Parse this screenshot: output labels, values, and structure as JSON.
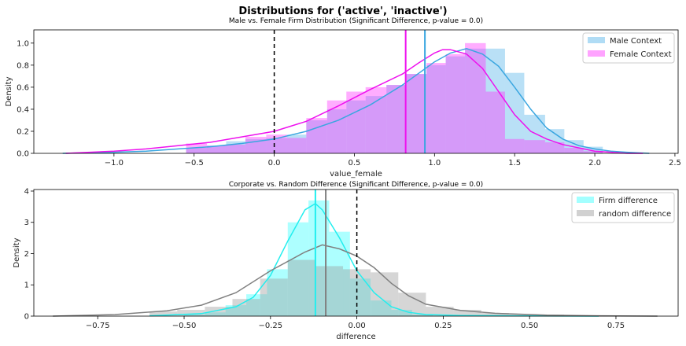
{
  "suptitle": "Distributions for ('active', 'inactive')",
  "chart_data": [
    {
      "type": "histogram+kde",
      "title": "Male vs. Female Firm Distribution (Significant Difference, p-value = 0.0)",
      "xlabel": "value_female",
      "ylabel": "Density",
      "xlim": [
        -1.5,
        2.52
      ],
      "ylim": [
        0,
        1.12
      ],
      "xticks": [
        -1.0,
        -0.5,
        0.0,
        0.5,
        1.0,
        1.5,
        2.0,
        2.5
      ],
      "xtick_labels": [
        "−1.0",
        "−0.5",
        "0.0",
        "0.5",
        "1.0",
        "1.5",
        "2.0",
        "2.5"
      ],
      "yticks": [
        0.0,
        0.2,
        0.4,
        0.6,
        0.8,
        1.0
      ],
      "ytick_labels": [
        "0.0",
        "0.2",
        "0.4",
        "0.6",
        "0.8",
        "1.0"
      ],
      "legend_position": "top-right",
      "series": [
        {
          "name": "Male Context",
          "color": "#4fb2e8",
          "bin_edges": [
            -0.55,
            -0.42,
            -0.3,
            -0.18,
            -0.05,
            0.08,
            0.2,
            0.33,
            0.45,
            0.57,
            0.7,
            0.82,
            0.95,
            1.07,
            1.19,
            1.32,
            1.44,
            1.56,
            1.69,
            1.81,
            1.93,
            2.05
          ],
          "densities": [
            0.05,
            0.07,
            0.11,
            0.13,
            0.14,
            0.17,
            0.3,
            0.4,
            0.48,
            0.52,
            0.62,
            0.72,
            0.8,
            0.88,
            0.95,
            0.95,
            0.73,
            0.35,
            0.22,
            0.12,
            0.06
          ],
          "kde_x": [
            -1.32,
            -1.0,
            -0.8,
            -0.6,
            -0.4,
            -0.2,
            0.0,
            0.2,
            0.4,
            0.6,
            0.8,
            1.0,
            1.1,
            1.2,
            1.3,
            1.4,
            1.5,
            1.6,
            1.7,
            1.8,
            1.9,
            2.0,
            2.1,
            2.2,
            2.34
          ],
          "kde_y": [
            0.0,
            0.01,
            0.02,
            0.04,
            0.06,
            0.09,
            0.13,
            0.2,
            0.3,
            0.44,
            0.62,
            0.83,
            0.91,
            0.95,
            0.9,
            0.79,
            0.6,
            0.4,
            0.23,
            0.13,
            0.07,
            0.04,
            0.02,
            0.01,
            0.0
          ],
          "mean_line": 0.94
        },
        {
          "name": "Female Context",
          "color": "#ff33ff",
          "bin_edges": [
            -0.55,
            -0.42,
            -0.3,
            -0.18,
            -0.05,
            0.08,
            0.2,
            0.33,
            0.45,
            0.57,
            0.7,
            0.82,
            0.95,
            1.07,
            1.19,
            1.32,
            1.44,
            1.56,
            1.69,
            1.81,
            1.93,
            2.05
          ],
          "densities": [
            0.09,
            0.07,
            0.08,
            0.15,
            0.17,
            0.14,
            0.32,
            0.48,
            0.56,
            0.6,
            0.62,
            0.72,
            0.82,
            0.9,
            1.0,
            0.56,
            0.13,
            0.12,
            0.1,
            0.05,
            0.02
          ],
          "kde_x": [
            -1.3,
            -1.0,
            -0.8,
            -0.6,
            -0.4,
            -0.2,
            0.0,
            0.2,
            0.4,
            0.6,
            0.8,
            0.9,
            1.0,
            1.05,
            1.1,
            1.2,
            1.3,
            1.4,
            1.5,
            1.6,
            1.7,
            1.8,
            2.0,
            2.2,
            2.3
          ],
          "kde_y": [
            0.0,
            0.02,
            0.04,
            0.07,
            0.1,
            0.15,
            0.2,
            0.29,
            0.43,
            0.58,
            0.72,
            0.82,
            0.91,
            0.94,
            0.94,
            0.9,
            0.77,
            0.56,
            0.35,
            0.2,
            0.13,
            0.08,
            0.02,
            0.0,
            0.0
          ],
          "mean_line": 0.82
        }
      ],
      "zero_line": 0.0
    },
    {
      "type": "histogram+kde",
      "title": "Corporate vs. Random Difference (Significant Difference, p-value = 0.0)",
      "xlabel": "difference",
      "ylabel": "Density",
      "xlim": [
        -0.935,
        0.93
      ],
      "ylim": [
        0,
        4.05
      ],
      "xticks": [
        -0.75,
        -0.5,
        -0.25,
        0.0,
        0.25,
        0.5,
        0.75
      ],
      "xtick_labels": [
        "−0.75",
        "−0.50",
        "−0.25",
        "0.00",
        "0.25",
        "0.50",
        "0.75"
      ],
      "yticks": [
        0,
        1,
        2,
        3,
        4
      ],
      "ytick_labels": [
        "0",
        "1",
        "2",
        "3",
        "4"
      ],
      "legend_position": "top-right",
      "series": [
        {
          "name": "Firm difference",
          "color": "#33ffff",
          "bin_edges": [
            -0.5,
            -0.44,
            -0.38,
            -0.32,
            -0.26,
            -0.2,
            -0.14,
            -0.08,
            -0.02,
            0.04,
            0.1,
            0.16,
            0.22
          ],
          "densities": [
            0.05,
            0.12,
            0.35,
            0.7,
            1.5,
            3.0,
            3.7,
            2.7,
            1.2,
            0.5,
            0.2,
            0.05
          ],
          "kde_x": [
            -0.6,
            -0.45,
            -0.35,
            -0.3,
            -0.25,
            -0.2,
            -0.15,
            -0.12,
            -0.1,
            -0.05,
            0.0,
            0.05,
            0.1,
            0.15,
            0.2,
            0.3,
            0.45,
            0.7
          ],
          "kde_y": [
            0.01,
            0.08,
            0.3,
            0.6,
            1.3,
            2.4,
            3.4,
            3.6,
            3.4,
            2.5,
            1.45,
            0.75,
            0.3,
            0.12,
            0.05,
            0.02,
            0.01,
            0.0
          ],
          "mean_line": -0.12
        },
        {
          "name": "random difference",
          "color": "#999999",
          "bin_edges": [
            -0.6,
            -0.52,
            -0.44,
            -0.36,
            -0.28,
            -0.2,
            -0.12,
            -0.04,
            0.04,
            0.12,
            0.2,
            0.28,
            0.36,
            0.44,
            0.52,
            0.6
          ],
          "densities": [
            0.15,
            0.2,
            0.3,
            0.55,
            1.2,
            1.8,
            1.6,
            1.5,
            1.4,
            0.75,
            0.3,
            0.2,
            0.1,
            0.05,
            0.05
          ],
          "kde_x": [
            -0.88,
            -0.7,
            -0.55,
            -0.45,
            -0.35,
            -0.25,
            -0.15,
            -0.1,
            -0.05,
            0.0,
            0.05,
            0.1,
            0.15,
            0.2,
            0.3,
            0.4,
            0.55,
            0.7,
            0.87
          ],
          "kde_y": [
            0.0,
            0.05,
            0.17,
            0.35,
            0.75,
            1.45,
            2.05,
            2.28,
            2.15,
            1.92,
            1.55,
            1.05,
            0.65,
            0.38,
            0.18,
            0.09,
            0.03,
            0.01,
            0.0
          ],
          "mean_line": -0.09
        }
      ],
      "zero_line": 0.0
    }
  ]
}
